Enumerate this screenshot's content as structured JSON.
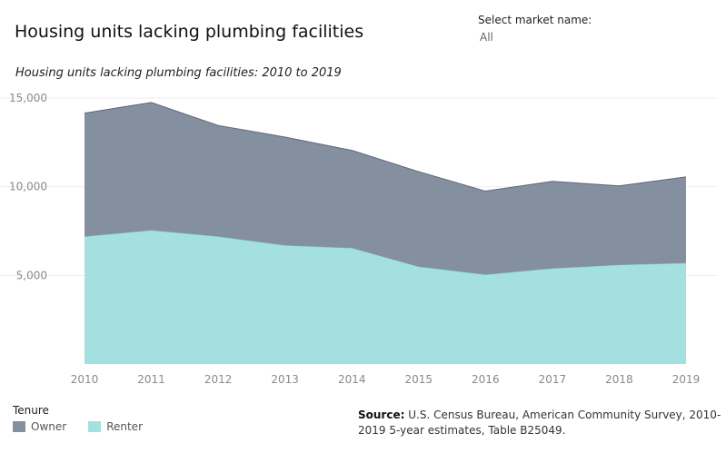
{
  "header": {
    "title": "Housing units lacking plumbing facilities"
  },
  "filter": {
    "label": "Select market name:",
    "selected": "All"
  },
  "legend": {
    "title": "Tenure",
    "items": [
      {
        "name": "Owner",
        "color": "#848f9f"
      },
      {
        "name": "Renter",
        "color": "#a5e0e0"
      }
    ]
  },
  "source": {
    "label": "Source:",
    "text": "U.S. Census Bureau, American Community Survey, 2010-2019 5-year estimates, Table B25049."
  },
  "chart_data": {
    "type": "area",
    "stacked": true,
    "title": "Housing units lacking plumbing facilities: 2010 to 2019",
    "x": [
      "2010",
      "2011",
      "2012",
      "2013",
      "2014",
      "2015",
      "2016",
      "2017",
      "2018",
      "2019"
    ],
    "series": [
      {
        "name": "Renter",
        "color": "#a5e0e0",
        "values": [
          7200,
          7550,
          7200,
          6700,
          6550,
          5500,
          5050,
          5400,
          5600,
          5700
        ]
      },
      {
        "name": "Owner",
        "color": "#848f9f",
        "values": [
          6950,
          7200,
          6250,
          6100,
          5500,
          5350,
          4700,
          4900,
          4450,
          4850
        ]
      }
    ],
    "stack_totals": [
      14150,
      14750,
      13450,
      12800,
      12050,
      10850,
      9750,
      10300,
      10050,
      10550
    ],
    "y_ticks": [
      {
        "value": 5000,
        "label": "5,000"
      },
      {
        "value": 10000,
        "label": "10,000"
      },
      {
        "value": 15000,
        "label": "15,000"
      }
    ],
    "ylim": [
      0,
      15000
    ],
    "grid": true,
    "legend_position": "bottom-left",
    "colors": {
      "grid": "#eeeeee",
      "axis_text": "#8a8a8a"
    }
  }
}
